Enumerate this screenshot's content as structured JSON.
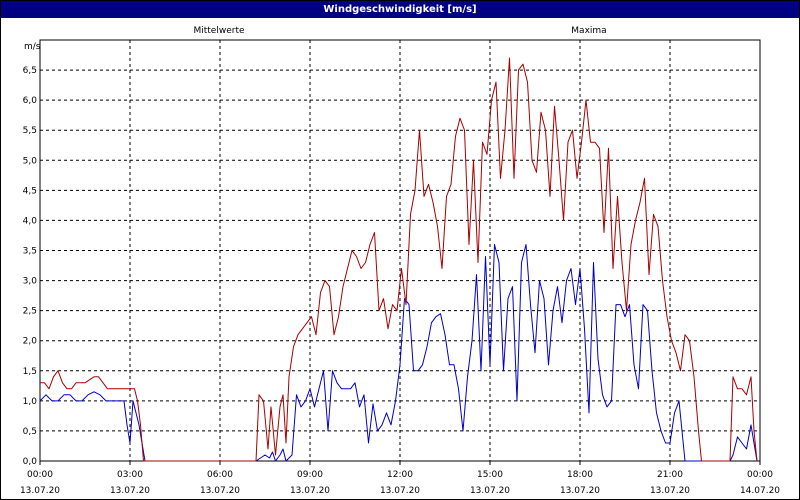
{
  "window": {
    "title": "Windgeschwindigkeit [m/s]"
  },
  "colors": {
    "mittelwerte": "#0000cc",
    "maxima": "#aa0000",
    "grid": "#000000",
    "background": "#ffffff"
  },
  "chart_data": {
    "type": "line",
    "title": "Windgeschwindigkeit [m/s]",
    "ylabel": "m/s",
    "ylim": [
      0,
      7
    ],
    "xlim": [
      0,
      24
    ],
    "grid": true,
    "legend_placement": "top",
    "yticks": [
      "0,0",
      "0,5",
      "1,0",
      "1,5",
      "2,0",
      "2,5",
      "3,0",
      "3,5",
      "4,0",
      "4,5",
      "5,0",
      "5,5",
      "6,0",
      "6,5"
    ],
    "xticks": [
      {
        "time": "00:00",
        "date": "13.07.20"
      },
      {
        "time": "03:00",
        "date": "13.07.20"
      },
      {
        "time": "06:00",
        "date": "13.07.20"
      },
      {
        "time": "09:00",
        "date": "13.07.20"
      },
      {
        "time": "12:00",
        "date": "13.07.20"
      },
      {
        "time": "15:00",
        "date": "13.07.20"
      },
      {
        "time": "18:00",
        "date": "13.07.20"
      },
      {
        "time": "21:00",
        "date": "13.07.20"
      },
      {
        "time": "00:00",
        "date": "14.07.20"
      }
    ],
    "series": [
      {
        "name": "Mittelwerte",
        "color": "#0000cc",
        "points": [
          [
            0.0,
            1.0
          ],
          [
            0.2,
            1.1
          ],
          [
            0.4,
            1.0
          ],
          [
            0.6,
            1.0
          ],
          [
            0.8,
            1.1
          ],
          [
            1.0,
            1.1
          ],
          [
            1.2,
            1.0
          ],
          [
            1.4,
            1.0
          ],
          [
            1.6,
            1.1
          ],
          [
            1.8,
            1.15
          ],
          [
            2.0,
            1.1
          ],
          [
            2.2,
            1.0
          ],
          [
            2.4,
            1.0
          ],
          [
            2.6,
            1.0
          ],
          [
            2.8,
            1.0
          ],
          [
            2.9,
            0.6
          ],
          [
            3.0,
            0.3
          ],
          [
            3.1,
            1.0
          ],
          [
            3.2,
            0.8
          ],
          [
            3.3,
            0.6
          ],
          [
            3.4,
            0.3
          ],
          [
            3.5,
            0.0
          ],
          [
            7.2,
            0.0
          ],
          [
            7.35,
            0.05
          ],
          [
            7.5,
            0.1
          ],
          [
            7.65,
            0.05
          ],
          [
            7.75,
            0.15
          ],
          [
            7.85,
            0.0
          ],
          [
            8.0,
            0.1
          ],
          [
            8.1,
            0.2
          ],
          [
            8.2,
            0.0
          ],
          [
            8.3,
            0.05
          ],
          [
            8.4,
            0.1
          ],
          [
            8.55,
            1.1
          ],
          [
            8.7,
            0.9
          ],
          [
            8.85,
            1.0
          ],
          [
            9.0,
            1.2
          ],
          [
            9.15,
            0.9
          ],
          [
            9.3,
            1.2
          ],
          [
            9.45,
            1.5
          ],
          [
            9.6,
            0.5
          ],
          [
            9.75,
            1.5
          ],
          [
            9.9,
            1.3
          ],
          [
            10.05,
            1.2
          ],
          [
            10.2,
            1.2
          ],
          [
            10.35,
            1.2
          ],
          [
            10.5,
            1.3
          ],
          [
            10.65,
            0.9
          ],
          [
            10.8,
            1.1
          ],
          [
            10.95,
            0.3
          ],
          [
            11.1,
            0.95
          ],
          [
            11.25,
            0.5
          ],
          [
            11.4,
            0.6
          ],
          [
            11.55,
            0.8
          ],
          [
            11.7,
            0.6
          ],
          [
            11.85,
            1.0
          ],
          [
            12.0,
            1.6
          ],
          [
            12.15,
            2.7
          ],
          [
            12.3,
            2.6
          ],
          [
            12.45,
            1.5
          ],
          [
            12.6,
            1.5
          ],
          [
            12.75,
            1.6
          ],
          [
            12.9,
            1.9
          ],
          [
            13.05,
            2.3
          ],
          [
            13.2,
            2.4
          ],
          [
            13.35,
            2.45
          ],
          [
            13.5,
            2.1
          ],
          [
            13.65,
            1.6
          ],
          [
            13.8,
            1.6
          ],
          [
            13.95,
            1.2
          ],
          [
            14.1,
            0.5
          ],
          [
            14.25,
            1.4
          ],
          [
            14.4,
            2.0
          ],
          [
            14.55,
            3.1
          ],
          [
            14.7,
            1.5
          ],
          [
            14.85,
            3.4
          ],
          [
            15.0,
            1.6
          ],
          [
            15.15,
            3.6
          ],
          [
            15.3,
            3.3
          ],
          [
            15.45,
            1.5
          ],
          [
            15.6,
            2.7
          ],
          [
            15.75,
            2.9
          ],
          [
            15.9,
            1.0
          ],
          [
            16.05,
            3.3
          ],
          [
            16.2,
            3.6
          ],
          [
            16.35,
            2.6
          ],
          [
            16.5,
            1.8
          ],
          [
            16.65,
            3.0
          ],
          [
            16.8,
            2.7
          ],
          [
            16.95,
            1.6
          ],
          [
            17.1,
            2.5
          ],
          [
            17.25,
            2.9
          ],
          [
            17.4,
            2.3
          ],
          [
            17.55,
            3.0
          ],
          [
            17.7,
            3.2
          ],
          [
            17.85,
            2.6
          ],
          [
            18.0,
            3.2
          ],
          [
            18.15,
            2.2
          ],
          [
            18.3,
            0.8
          ],
          [
            18.45,
            3.3
          ],
          [
            18.6,
            1.7
          ],
          [
            18.75,
            1.1
          ],
          [
            18.9,
            0.9
          ],
          [
            19.05,
            1.0
          ],
          [
            19.2,
            2.6
          ],
          [
            19.35,
            2.6
          ],
          [
            19.5,
            2.4
          ],
          [
            19.65,
            2.6
          ],
          [
            19.8,
            1.6
          ],
          [
            19.95,
            1.2
          ],
          [
            20.1,
            2.6
          ],
          [
            20.25,
            2.5
          ],
          [
            20.4,
            1.5
          ],
          [
            20.55,
            0.8
          ],
          [
            20.7,
            0.5
          ],
          [
            20.85,
            0.3
          ],
          [
            21.0,
            0.3
          ],
          [
            21.15,
            0.8
          ],
          [
            21.3,
            1.0
          ],
          [
            21.4,
            0.5
          ],
          [
            21.5,
            0.0
          ],
          [
            23.0,
            0.0
          ],
          [
            23.1,
            0.1
          ],
          [
            23.25,
            0.4
          ],
          [
            23.4,
            0.3
          ],
          [
            23.55,
            0.2
          ],
          [
            23.7,
            0.6
          ],
          [
            23.8,
            0.3
          ],
          [
            23.9,
            0.0
          ]
        ]
      },
      {
        "name": "Maxima",
        "color": "#aa0000",
        "points": [
          [
            0.0,
            1.3
          ],
          [
            0.15,
            1.3
          ],
          [
            0.3,
            1.2
          ],
          [
            0.45,
            1.4
          ],
          [
            0.6,
            1.5
          ],
          [
            0.75,
            1.3
          ],
          [
            0.9,
            1.2
          ],
          [
            1.05,
            1.2
          ],
          [
            1.2,
            1.3
          ],
          [
            1.35,
            1.3
          ],
          [
            1.5,
            1.3
          ],
          [
            1.65,
            1.35
          ],
          [
            1.8,
            1.4
          ],
          [
            1.95,
            1.4
          ],
          [
            2.1,
            1.3
          ],
          [
            2.25,
            1.2
          ],
          [
            2.4,
            1.2
          ],
          [
            2.55,
            1.2
          ],
          [
            2.7,
            1.2
          ],
          [
            2.85,
            1.2
          ],
          [
            3.0,
            1.2
          ],
          [
            3.15,
            1.2
          ],
          [
            3.25,
            1.0
          ],
          [
            3.35,
            0.6
          ],
          [
            3.45,
            0.0
          ],
          [
            7.2,
            0.0
          ],
          [
            7.3,
            1.1
          ],
          [
            7.45,
            1.0
          ],
          [
            7.6,
            0.2
          ],
          [
            7.7,
            0.9
          ],
          [
            7.85,
            0.1
          ],
          [
            8.0,
            0.9
          ],
          [
            8.1,
            1.1
          ],
          [
            8.2,
            0.3
          ],
          [
            8.3,
            1.4
          ],
          [
            8.45,
            1.9
          ],
          [
            8.6,
            2.1
          ],
          [
            8.75,
            2.2
          ],
          [
            8.9,
            2.3
          ],
          [
            9.05,
            2.4
          ],
          [
            9.2,
            2.1
          ],
          [
            9.35,
            2.8
          ],
          [
            9.5,
            3.0
          ],
          [
            9.65,
            2.9
          ],
          [
            9.8,
            2.1
          ],
          [
            9.95,
            2.4
          ],
          [
            10.1,
            2.9
          ],
          [
            10.25,
            3.2
          ],
          [
            10.4,
            3.5
          ],
          [
            10.55,
            3.4
          ],
          [
            10.7,
            3.2
          ],
          [
            10.85,
            3.3
          ],
          [
            11.0,
            3.6
          ],
          [
            11.15,
            3.8
          ],
          [
            11.3,
            2.5
          ],
          [
            11.45,
            2.7
          ],
          [
            11.6,
            2.2
          ],
          [
            11.75,
            2.6
          ],
          [
            11.9,
            2.5
          ],
          [
            12.05,
            3.2
          ],
          [
            12.2,
            2.6
          ],
          [
            12.35,
            4.1
          ],
          [
            12.5,
            4.5
          ],
          [
            12.65,
            5.5
          ],
          [
            12.8,
            4.4
          ],
          [
            12.95,
            4.6
          ],
          [
            13.1,
            4.3
          ],
          [
            13.25,
            3.9
          ],
          [
            13.4,
            3.2
          ],
          [
            13.55,
            4.4
          ],
          [
            13.7,
            4.6
          ],
          [
            13.85,
            5.4
          ],
          [
            14.0,
            5.7
          ],
          [
            14.15,
            5.5
          ],
          [
            14.3,
            3.6
          ],
          [
            14.45,
            5.0
          ],
          [
            14.6,
            3.3
          ],
          [
            14.75,
            5.3
          ],
          [
            14.9,
            5.1
          ],
          [
            15.05,
            6.0
          ],
          [
            15.2,
            6.3
          ],
          [
            15.35,
            4.7
          ],
          [
            15.5,
            5.5
          ],
          [
            15.65,
            6.7
          ],
          [
            15.8,
            4.7
          ],
          [
            15.95,
            6.5
          ],
          [
            16.1,
            6.6
          ],
          [
            16.25,
            6.3
          ],
          [
            16.4,
            5.0
          ],
          [
            16.55,
            4.8
          ],
          [
            16.7,
            5.8
          ],
          [
            16.85,
            5.5
          ],
          [
            17.0,
            4.4
          ],
          [
            17.15,
            5.9
          ],
          [
            17.3,
            5.0
          ],
          [
            17.45,
            4.0
          ],
          [
            17.6,
            5.3
          ],
          [
            17.75,
            5.5
          ],
          [
            17.9,
            4.7
          ],
          [
            18.05,
            5.3
          ],
          [
            18.2,
            6.0
          ],
          [
            18.35,
            5.3
          ],
          [
            18.5,
            5.3
          ],
          [
            18.65,
            5.2
          ],
          [
            18.8,
            3.8
          ],
          [
            18.95,
            5.2
          ],
          [
            19.1,
            3.2
          ],
          [
            19.25,
            4.4
          ],
          [
            19.4,
            3.3
          ],
          [
            19.55,
            2.5
          ],
          [
            19.7,
            3.6
          ],
          [
            19.85,
            4.0
          ],
          [
            20.0,
            4.3
          ],
          [
            20.15,
            4.7
          ],
          [
            20.3,
            3.1
          ],
          [
            20.45,
            4.1
          ],
          [
            20.6,
            3.9
          ],
          [
            20.75,
            3.0
          ],
          [
            20.9,
            2.4
          ],
          [
            21.05,
            2.0
          ],
          [
            21.2,
            1.8
          ],
          [
            21.35,
            1.5
          ],
          [
            21.5,
            2.1
          ],
          [
            21.65,
            2.0
          ],
          [
            21.8,
            1.4
          ],
          [
            21.95,
            0.5
          ],
          [
            22.05,
            0.0
          ],
          [
            23.0,
            0.0
          ],
          [
            23.1,
            1.4
          ],
          [
            23.25,
            1.2
          ],
          [
            23.4,
            1.2
          ],
          [
            23.55,
            1.1
          ],
          [
            23.7,
            1.4
          ],
          [
            23.8,
            0.5
          ],
          [
            23.9,
            0.0
          ]
        ]
      }
    ]
  }
}
